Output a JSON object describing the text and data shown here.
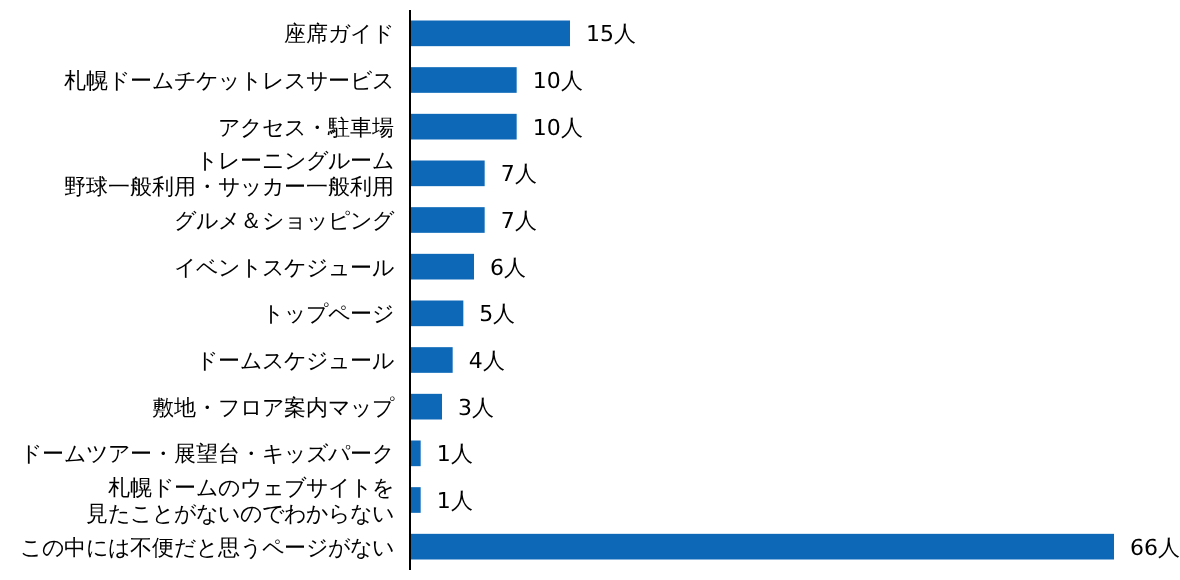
{
  "chart_data": {
    "type": "bar",
    "orientation": "horizontal",
    "color": "#0d69b8",
    "categories": [
      "座席ガイド",
      "札幌ドームチケットレスサービス",
      "アクセス・駐車場",
      "トレーニングルーム野球一般利用・サッカー一般利用",
      "グルメ＆ショッピング",
      "イベントスケジュール",
      "トップページ",
      "ドームスケジュール",
      "敷地・フロア案内マップ",
      "ドームツアー・展望台・キッズパーク",
      "札幌ドームのウェブサイトを見たことがないのでわからない",
      "この中には不便だと思うページがない"
    ],
    "values": [
      15,
      10,
      10,
      7,
      7,
      6,
      5,
      4,
      3,
      1,
      1,
      66
    ],
    "value_labels": [
      "15人",
      "10人",
      "10人",
      "7人",
      "7人",
      "6人",
      "5人",
      "4人",
      "3人",
      "1人",
      "1人",
      "66人"
    ]
  }
}
